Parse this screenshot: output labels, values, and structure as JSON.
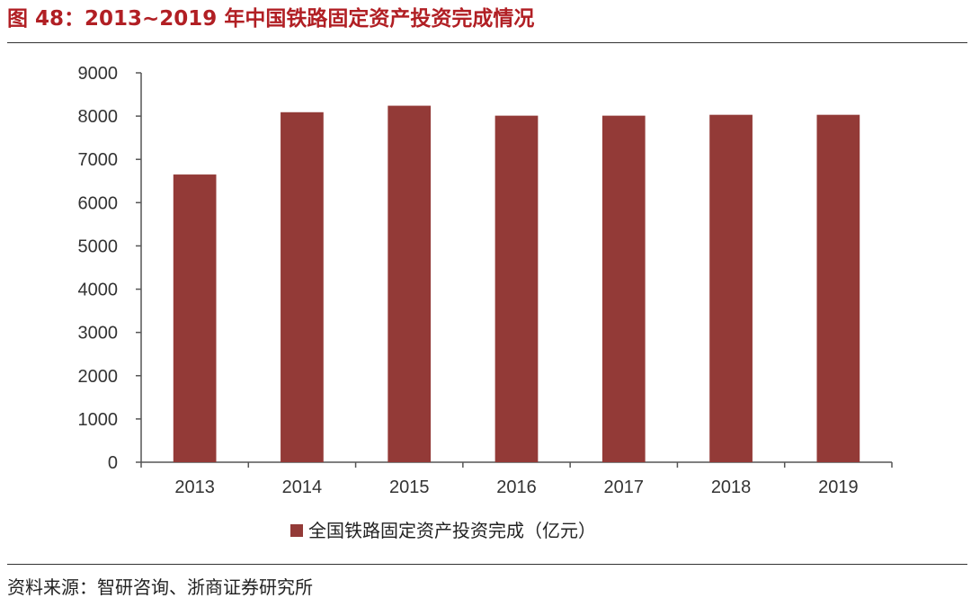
{
  "figure": {
    "title": "图 48：2013~2019 年中国铁路固定资产投资完成情况",
    "source": "资料来源：智研咨询、浙商证券研究所"
  },
  "colors": {
    "title": "#b11f24",
    "bar": "#933a37"
  },
  "chart_data": {
    "type": "bar",
    "categories": [
      "2013",
      "2014",
      "2015",
      "2016",
      "2017",
      "2018",
      "2019"
    ],
    "series": [
      {
        "name": "全国铁路固定资产投资完成（亿元）",
        "values": [
          6650,
          8090,
          8240,
          8010,
          8010,
          8030,
          8030
        ]
      }
    ],
    "y_ticks": [
      "0",
      "1000",
      "2000",
      "3000",
      "4000",
      "5000",
      "6000",
      "7000",
      "8000",
      "9000"
    ],
    "ylim": [
      0,
      9000
    ],
    "grid": false,
    "legend_position": "bottom"
  }
}
